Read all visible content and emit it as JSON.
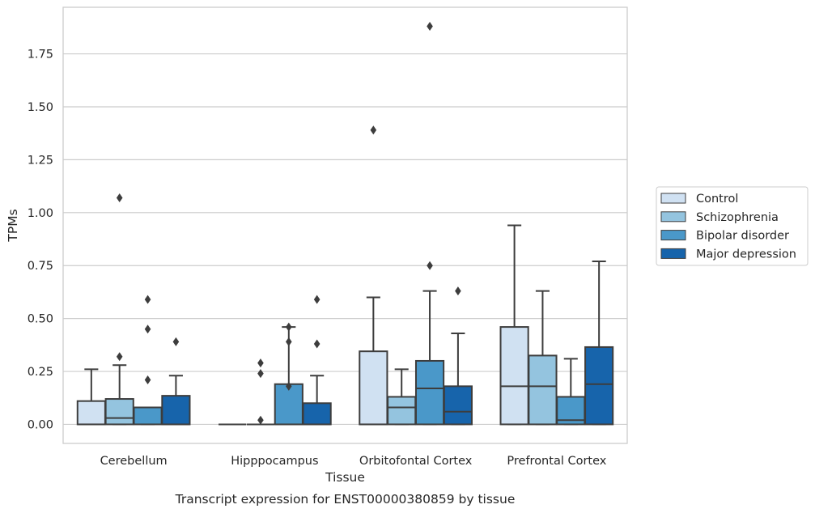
{
  "chart_data": {
    "type": "boxplot",
    "xlabel": "Tissue",
    "ylabel": "TPMs",
    "caption": "Transcript expression for ENST00000380859 by tissue",
    "categories": [
      "Cerebellum",
      "Hipppocampus",
      "Orbitofontal Cortex",
      "Prefrontal Cortex"
    ],
    "ylim": [
      -0.09,
      1.97
    ],
    "yticks": [
      0.0,
      0.25,
      0.5,
      0.75,
      1.0,
      1.25,
      1.5,
      1.75
    ],
    "ytick_labels": [
      "0.00",
      "0.25",
      "0.50",
      "0.75",
      "1.00",
      "1.25",
      "1.50",
      "1.75"
    ],
    "grid": true,
    "legend_position": "right",
    "series": [
      {
        "name": "Control",
        "color": "#d0e1f2",
        "boxes": [
          {
            "q1": 0.0,
            "median": 0.0,
            "q3": 0.11,
            "whisker_low": 0.0,
            "whisker_high": 0.26,
            "outliers": []
          },
          {
            "q1": 0.0,
            "median": 0.0,
            "q3": 0.0,
            "whisker_low": 0.0,
            "whisker_high": 0.0,
            "outliers": []
          },
          {
            "q1": 0.0,
            "median": 0.0,
            "q3": 0.345,
            "whisker_low": 0.0,
            "whisker_high": 0.6,
            "outliers": [
              1.39
            ]
          },
          {
            "q1": 0.0,
            "median": 0.18,
            "q3": 0.46,
            "whisker_low": 0.0,
            "whisker_high": 0.94,
            "outliers": []
          }
        ]
      },
      {
        "name": "Schizophrenia",
        "color": "#94c4df",
        "boxes": [
          {
            "q1": 0.0,
            "median": 0.03,
            "q3": 0.12,
            "whisker_low": 0.0,
            "whisker_high": 0.28,
            "outliers": [
              0.32,
              1.07
            ]
          },
          {
            "q1": 0.0,
            "median": 0.0,
            "q3": 0.0,
            "whisker_low": 0.0,
            "whisker_high": 0.0,
            "outliers": [
              0.02,
              0.24,
              0.29
            ]
          },
          {
            "q1": 0.0,
            "median": 0.08,
            "q3": 0.13,
            "whisker_low": 0.0,
            "whisker_high": 0.26,
            "outliers": []
          },
          {
            "q1": 0.0,
            "median": 0.18,
            "q3": 0.325,
            "whisker_low": 0.0,
            "whisker_high": 0.63,
            "outliers": []
          }
        ]
      },
      {
        "name": "Bipolar disorder",
        "color": "#4a98c9",
        "boxes": [
          {
            "q1": 0.0,
            "median": 0.08,
            "q3": 0.08,
            "whisker_low": 0.0,
            "whisker_high": 0.08,
            "outliers": [
              0.21,
              0.45,
              0.59
            ]
          },
          {
            "q1": 0.0,
            "median": 0.0,
            "q3": 0.19,
            "whisker_low": 0.0,
            "whisker_high": 0.46,
            "outliers": [
              0.18,
              0.39,
              0.46
            ]
          },
          {
            "q1": 0.0,
            "median": 0.17,
            "q3": 0.3,
            "whisker_low": 0.0,
            "whisker_high": 0.63,
            "outliers": [
              0.75,
              1.88
            ]
          },
          {
            "q1": 0.0,
            "median": 0.02,
            "q3": 0.13,
            "whisker_low": 0.0,
            "whisker_high": 0.31,
            "outliers": []
          }
        ]
      },
      {
        "name": "Major depression",
        "color": "#1764ab",
        "boxes": [
          {
            "q1": 0.0,
            "median": 0.0,
            "q3": 0.135,
            "whisker_low": 0.0,
            "whisker_high": 0.23,
            "outliers": [
              0.39
            ]
          },
          {
            "q1": 0.0,
            "median": 0.0,
            "q3": 0.1,
            "whisker_low": 0.0,
            "whisker_high": 0.23,
            "outliers": [
              0.38,
              0.59
            ]
          },
          {
            "q1": 0.0,
            "median": 0.06,
            "q3": 0.18,
            "whisker_low": 0.0,
            "whisker_high": 0.43,
            "outliers": [
              0.63
            ]
          },
          {
            "q1": 0.0,
            "median": 0.19,
            "q3": 0.365,
            "whisker_low": 0.0,
            "whisker_high": 0.77,
            "outliers": []
          }
        ]
      }
    ]
  }
}
